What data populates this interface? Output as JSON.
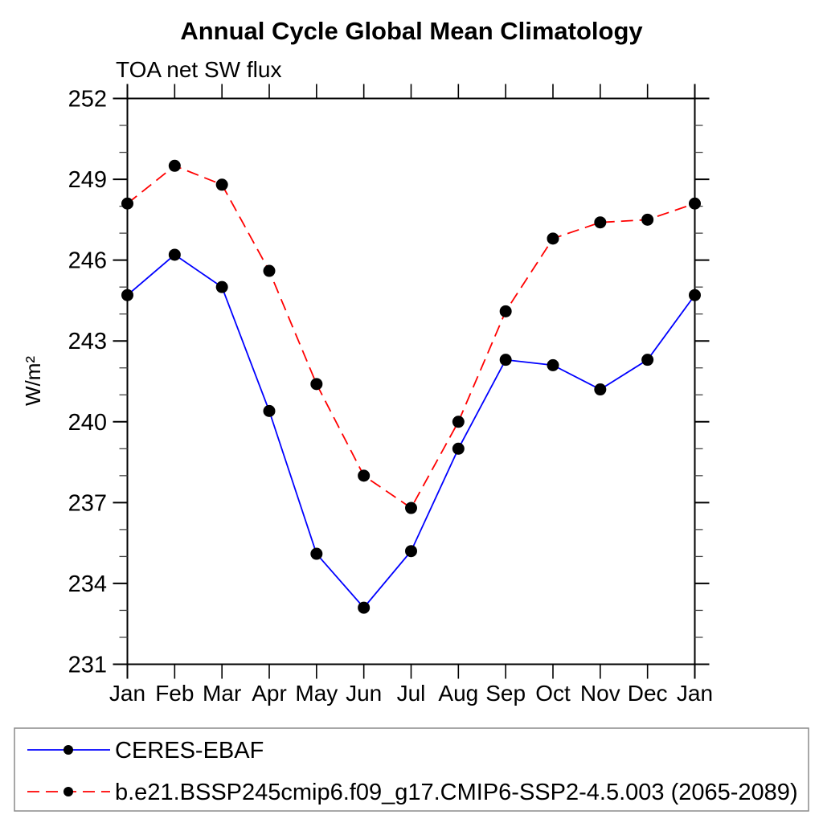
{
  "chart_data": {
    "type": "line",
    "title": "Annual Cycle Global Mean Climatology",
    "subtitle": "TOA net SW flux",
    "ylabel": "W/m²",
    "xlabel": "",
    "categories": [
      "Jan",
      "Feb",
      "Mar",
      "Apr",
      "May",
      "Jun",
      "Jul",
      "Aug",
      "Sep",
      "Oct",
      "Nov",
      "Dec",
      "Jan"
    ],
    "ylim": [
      231,
      252
    ],
    "ytick_step_major": 3,
    "ytick_step_minor": 1,
    "ytick_labels": [
      "231",
      "234",
      "237",
      "240",
      "243",
      "246",
      "249",
      "252"
    ],
    "grid": false,
    "legend_position": "bottom",
    "series": [
      {
        "name": "CERES-EBAF",
        "color": "#0000ff",
        "line_style": "solid",
        "marker": "filled-circle",
        "marker_color": "#000000",
        "values": [
          244.7,
          246.2,
          245.0,
          240.4,
          235.1,
          233.1,
          235.2,
          239.0,
          242.3,
          242.1,
          241.2,
          242.3,
          244.7
        ]
      },
      {
        "name": "b.e21.BSSP245cmip6.f09_g17.CMIP6-SSP2-4.5.003 (2065-2089)",
        "color": "#ff0000",
        "line_style": "dashed",
        "marker": "filled-circle",
        "marker_color": "#000000",
        "values": [
          248.1,
          249.5,
          248.8,
          245.6,
          241.4,
          238.0,
          236.8,
          240.0,
          244.1,
          246.8,
          247.4,
          247.5,
          248.1
        ]
      }
    ]
  }
}
